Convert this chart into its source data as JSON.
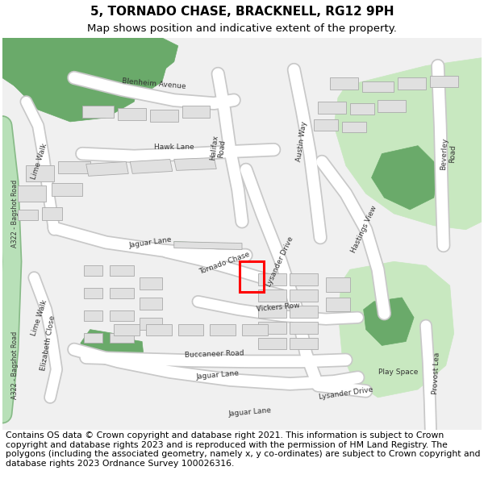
{
  "title_line1": "5, TORNADO CHASE, BRACKNELL, RG12 9PH",
  "title_line2": "Map shows position and indicative extent of the property.",
  "footer_text": "Contains OS data © Crown copyright and database right 2021. This information is subject to Crown copyright and database rights 2023 and is reproduced with the permission of HM Land Registry. The polygons (including the associated geometry, namely x, y co-ordinates) are subject to Crown copyright and database rights 2023 Ordnance Survey 100026316.",
  "bg_color": "#f5f5f5",
  "map_bg": "#f0f0f0",
  "road_color": "#ffffff",
  "road_outline_color": "#c8c8c8",
  "a322_color": "#b8e0b8",
  "a322_outline": "#88bb88",
  "green_dark": "#6aaa6a",
  "green_light": "#c8e8c0",
  "building_color": "#e0e0e0",
  "building_outline_color": "#aaaaaa",
  "highlight_color": "#ff0000",
  "title_fontsize": 11,
  "subtitle_fontsize": 9.5,
  "footer_fontsize": 7.8,
  "road_label_fontsize": 6.5,
  "label_color": "#333333"
}
